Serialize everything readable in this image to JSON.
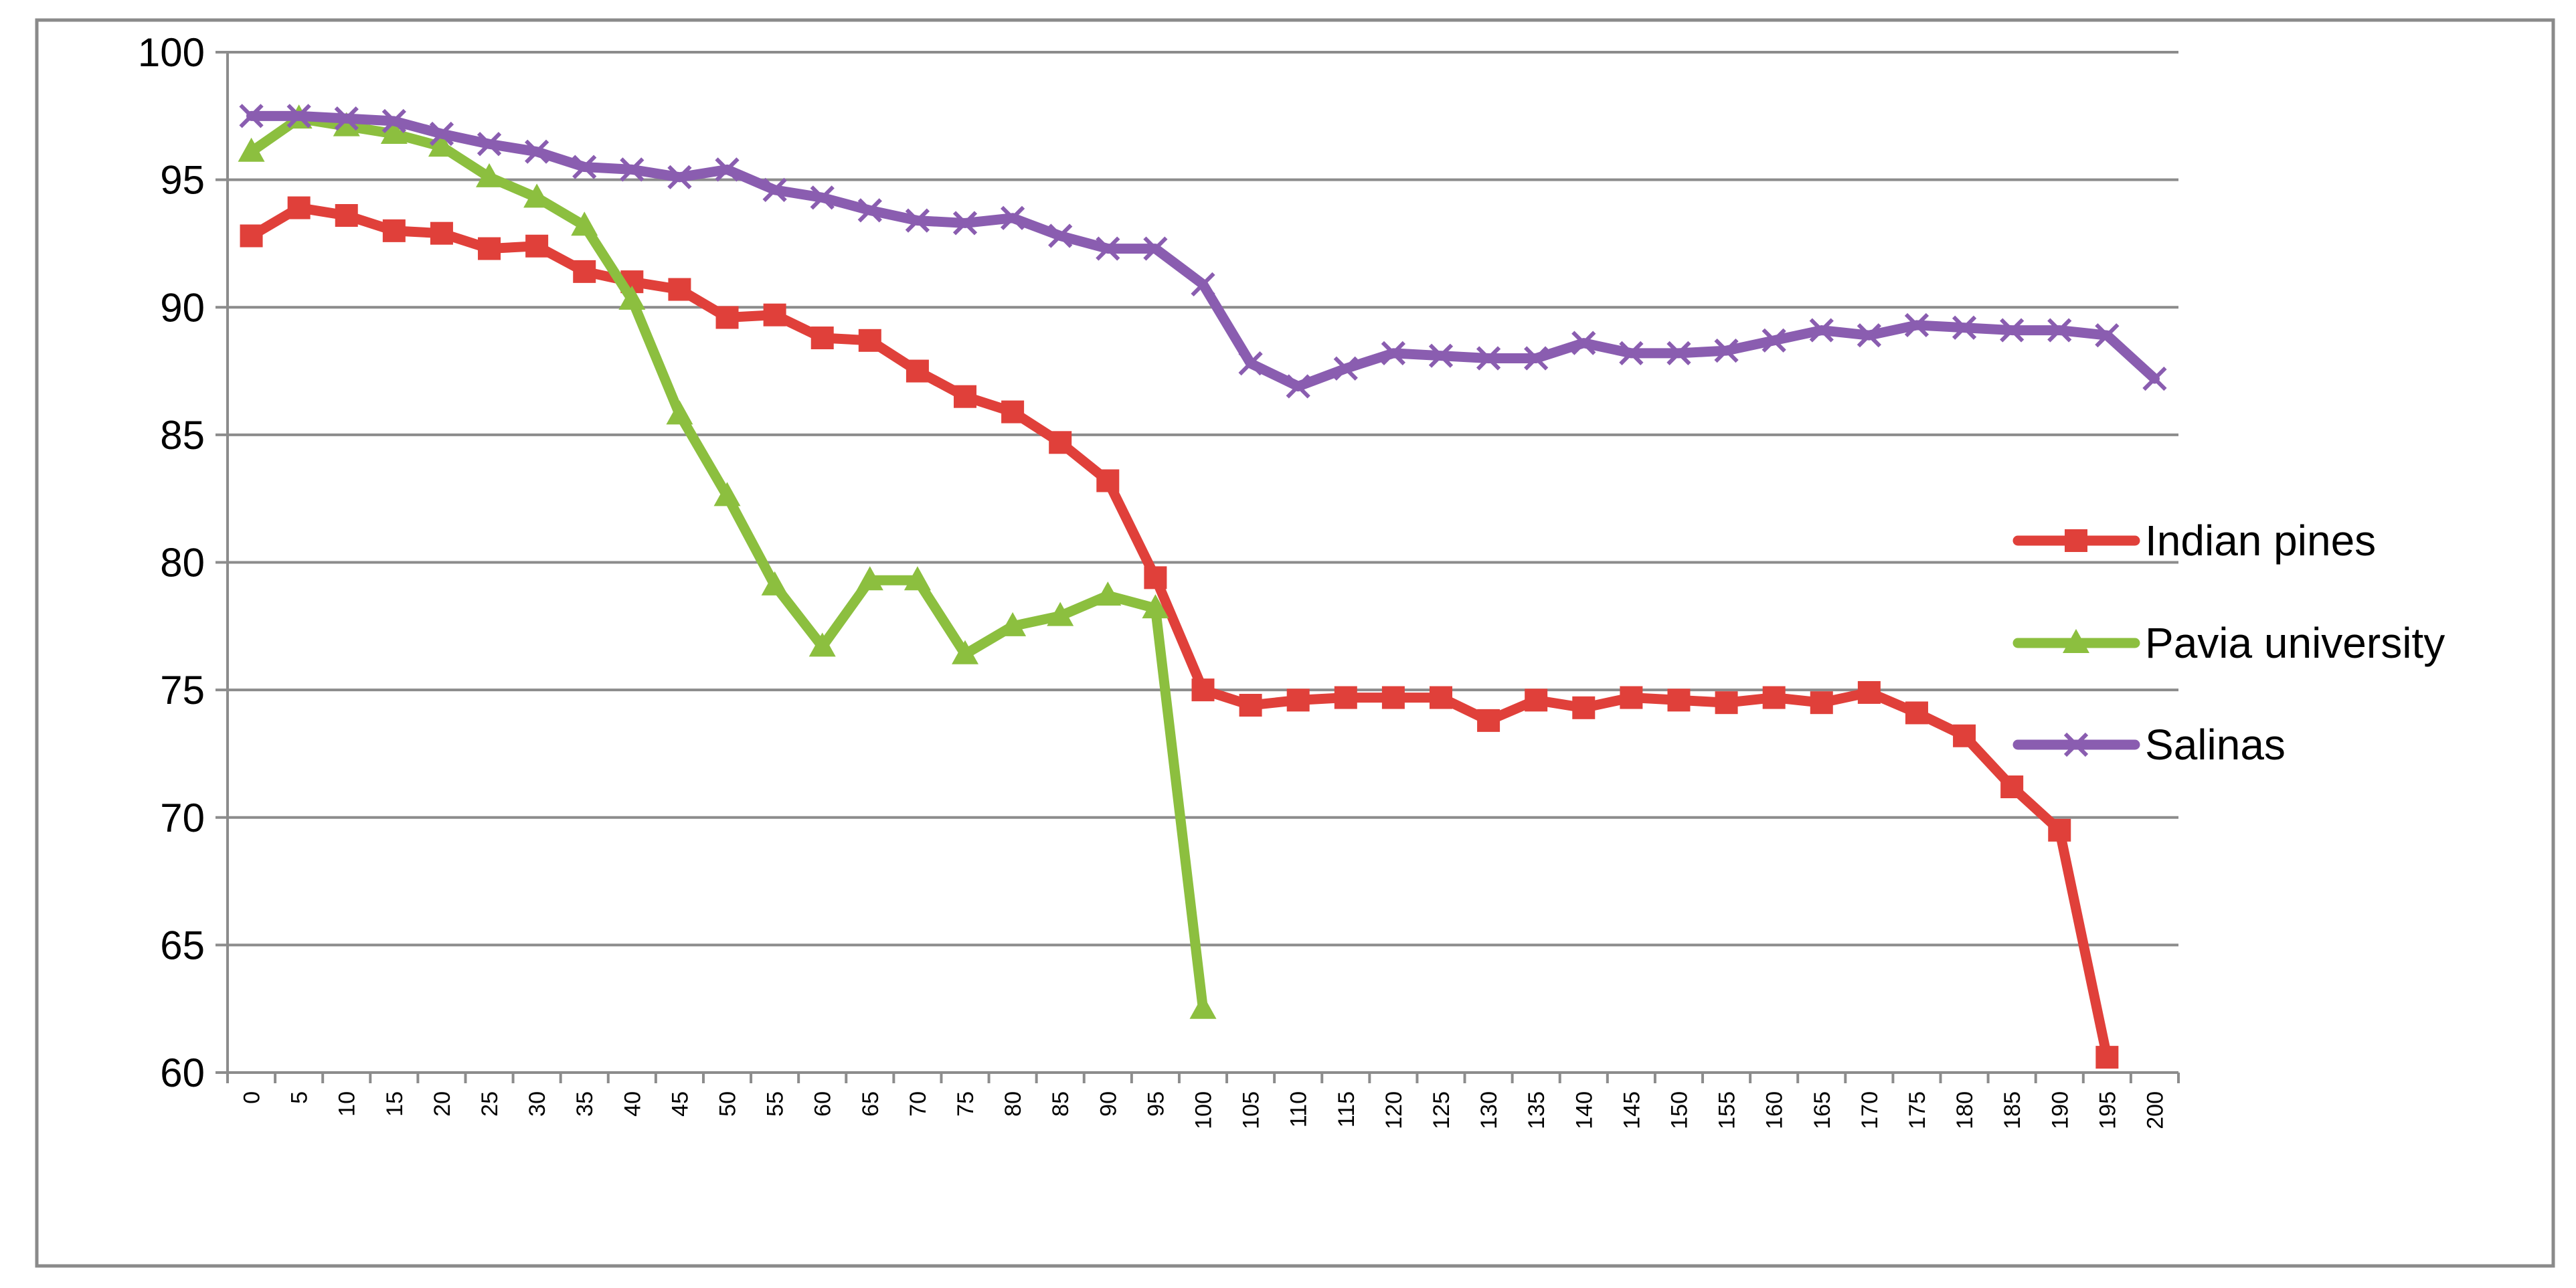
{
  "chart_data": {
    "type": "line",
    "title": "",
    "xlabel": "",
    "ylabel": "",
    "ylim": [
      60,
      100
    ],
    "y_ticks": [
      60,
      65,
      70,
      75,
      80,
      85,
      90,
      95,
      100
    ],
    "x": [
      0,
      5,
      10,
      15,
      20,
      25,
      30,
      35,
      40,
      45,
      50,
      55,
      60,
      65,
      70,
      75,
      80,
      85,
      90,
      95,
      100,
      105,
      110,
      115,
      120,
      125,
      130,
      135,
      140,
      145,
      150,
      155,
      160,
      165,
      170,
      175,
      180,
      185,
      190,
      195,
      200
    ],
    "grid": "horizontal",
    "legend_position": "right",
    "series": [
      {
        "name": "Indian pines",
        "color": "#E0403A",
        "marker": "square",
        "values": [
          92.8,
          93.9,
          93.6,
          93.0,
          92.9,
          92.3,
          92.4,
          91.4,
          91.0,
          90.7,
          89.6,
          89.7,
          88.8,
          88.7,
          87.5,
          86.5,
          85.9,
          84.7,
          83.2,
          79.4,
          75.0,
          74.4,
          74.6,
          74.7,
          74.7,
          74.7,
          73.8,
          74.6,
          74.3,
          74.7,
          74.6,
          74.5,
          74.7,
          74.5,
          74.9,
          74.1,
          73.2,
          71.2,
          69.5,
          60.6,
          null
        ]
      },
      {
        "name": "Pavia university",
        "color": "#8CBF3F",
        "marker": "triangle",
        "values": [
          96.1,
          97.4,
          97.1,
          96.8,
          96.3,
          95.1,
          94.3,
          93.2,
          90.3,
          85.8,
          82.6,
          79.1,
          76.7,
          79.3,
          79.3,
          76.4,
          77.5,
          77.9,
          78.7,
          78.2,
          62.5,
          null,
          null,
          null,
          null,
          null,
          null,
          null,
          null,
          null,
          null,
          null,
          null,
          null,
          null,
          null,
          null,
          null,
          null,
          null,
          null
        ]
      },
      {
        "name": "Salinas",
        "color": "#8A5DB0",
        "marker": "x",
        "values": [
          97.5,
          97.5,
          97.4,
          97.3,
          96.8,
          96.4,
          96.1,
          95.5,
          95.4,
          95.1,
          95.4,
          94.6,
          94.3,
          93.8,
          93.4,
          93.3,
          93.5,
          92.8,
          92.3,
          92.3,
          90.9,
          87.8,
          86.9,
          87.6,
          88.2,
          88.1,
          88.0,
          88.0,
          88.6,
          88.2,
          88.2,
          88.3,
          88.7,
          89.1,
          88.9,
          89.3,
          89.2,
          89.1,
          89.1,
          88.9,
          87.2
        ]
      }
    ]
  }
}
